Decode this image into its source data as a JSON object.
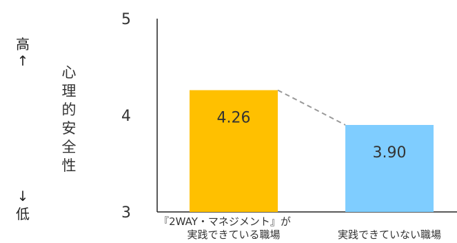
{
  "scale_hint": {
    "high": "高",
    "up_arrow": "↑",
    "down_arrow": "↓",
    "low": "低"
  },
  "y_axis_label_chars": [
    "心",
    "理",
    "的",
    "安",
    "全",
    "性"
  ],
  "colors": {
    "bar_1": "#ffc000",
    "bar_2": "#7fcdff",
    "connector": "#999999",
    "axis": "#222222"
  },
  "chart_data": {
    "type": "bar",
    "categories": [
      [
        "『2WAY・マネジメント』が",
        "実践できている職場"
      ],
      [
        "実践できていない職場"
      ]
    ],
    "values": [
      4.26,
      3.9
    ],
    "value_labels": [
      "4.26",
      "3.90"
    ],
    "ylim": [
      3,
      5
    ],
    "yticks": [
      "3",
      "4",
      "5"
    ],
    "ylabel": "心理的安全性",
    "grid": false
  }
}
